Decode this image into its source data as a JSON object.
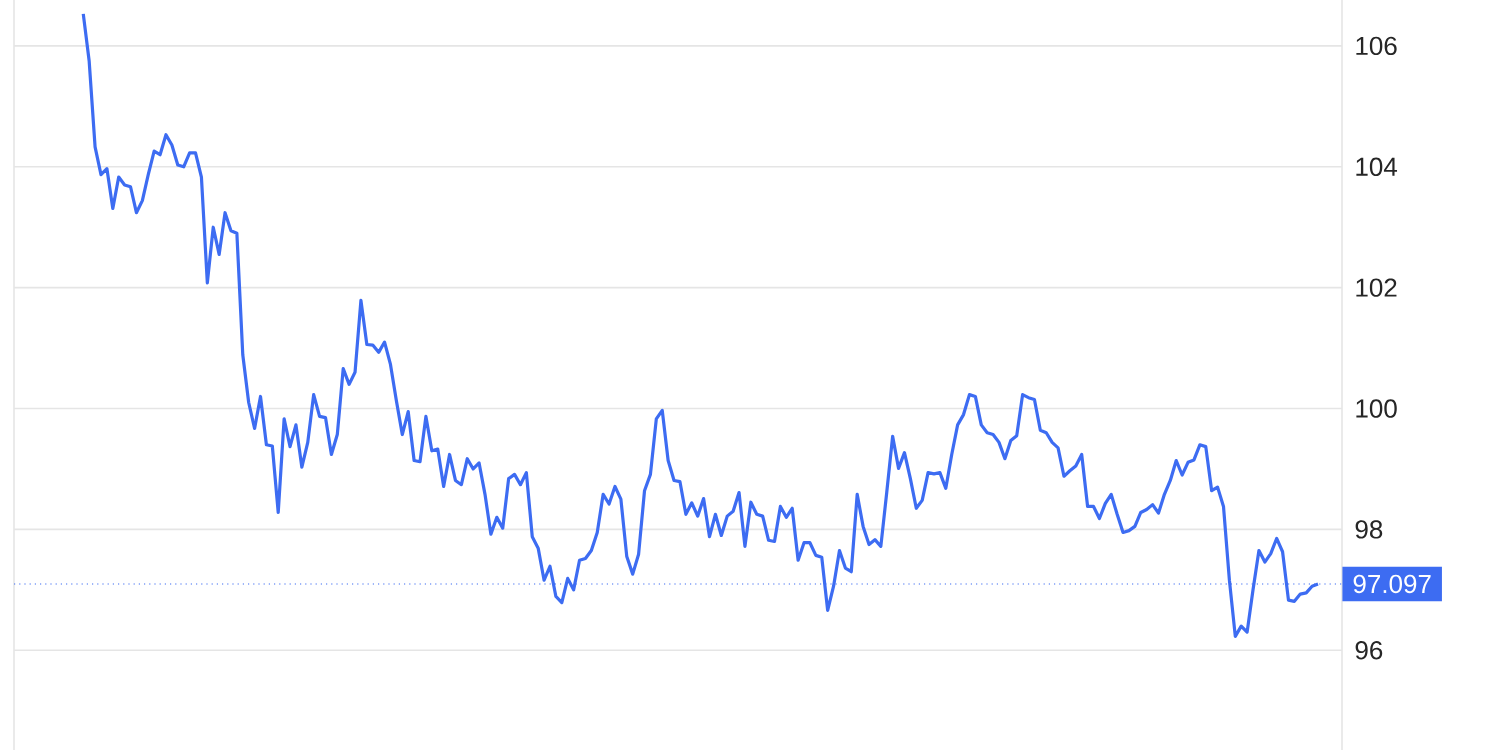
{
  "chart_data": {
    "type": "line",
    "color": "#3d6cf2",
    "categories": [
      null,
      null,
      null,
      null,
      null,
      null,
      null,
      null,
      null,
      null,
      null,
      null,
      null,
      null,
      null,
      null,
      null,
      null,
      null,
      null,
      null,
      null,
      null,
      null,
      null,
      null,
      null,
      null,
      null,
      null,
      null,
      null,
      null,
      null,
      null,
      null,
      null,
      null,
      null,
      null,
      null,
      null,
      null,
      null,
      null,
      null,
      null,
      null,
      null,
      null,
      null,
      null,
      null,
      null,
      null,
      null,
      null,
      null,
      null,
      null,
      null,
      null,
      null,
      null,
      null,
      null,
      null,
      null,
      null,
      null,
      null,
      null,
      null,
      null,
      null,
      null,
      null,
      null,
      null,
      null,
      null,
      null,
      null,
      null,
      null,
      null,
      null,
      null,
      null,
      null,
      null,
      null,
      null,
      null,
      null,
      null,
      null,
      null,
      null,
      null,
      null,
      null,
      null,
      null,
      null,
      null,
      null,
      null,
      null,
      null,
      null,
      null,
      null,
      null,
      null,
      null,
      null,
      null,
      null,
      null,
      null,
      null,
      null,
      null,
      null,
      null,
      null,
      null,
      null,
      null,
      null,
      null,
      null,
      null,
      null,
      null,
      null,
      null,
      null,
      null,
      null,
      null,
      null,
      null,
      null,
      null,
      null,
      null,
      null,
      null,
      null,
      null,
      null,
      null,
      null,
      null,
      null,
      null,
      null,
      null,
      null,
      null,
      null,
      null,
      null,
      null,
      null,
      null,
      null,
      null,
      null,
      null,
      null,
      null,
      null,
      null,
      null,
      null,
      null,
      null,
      null,
      null,
      null,
      null,
      null,
      null,
      null,
      null,
      null,
      null,
      null,
      null,
      null,
      null,
      null,
      null,
      null,
      null,
      null,
      null,
      null,
      null,
      null,
      null,
      null,
      null,
      null,
      null,
      null,
      null,
      null,
      null,
      null,
      null,
      null,
      null,
      null,
      null
    ],
    "values": [
      null,
      null,
      null,
      null,
      null,
      null,
      null,
      null,
      106.53,
      105.75,
      104.33,
      103.87,
      103.97,
      103.31,
      103.83,
      103.7,
      103.67,
      103.24,
      103.44,
      103.87,
      104.26,
      104.2,
      104.53,
      104.36,
      104.03,
      104.0,
      104.23,
      104.23,
      103.83,
      102.08,
      103.0,
      102.55,
      103.24,
      102.94,
      102.9,
      100.89,
      100.1,
      99.67,
      100.2,
      99.4,
      99.38,
      98.28,
      99.83,
      99.37,
      99.73,
      99.03,
      99.44,
      100.23,
      99.87,
      99.85,
      99.24,
      99.57,
      100.66,
      100.4,
      100.6,
      101.79,
      101.06,
      101.05,
      100.93,
      101.1,
      100.73,
      100.13,
      99.57,
      99.95,
      99.14,
      99.12,
      99.87,
      99.3,
      99.33,
      98.71,
      99.24,
      98.81,
      98.74,
      99.17,
      99.0,
      99.1,
      98.58,
      97.92,
      98.2,
      98.02,
      98.84,
      98.91,
      98.74,
      98.94,
      97.88,
      97.69,
      97.16,
      97.39,
      96.89,
      96.79,
      97.19,
      97.0,
      97.49,
      97.52,
      97.65,
      97.95,
      98.58,
      98.42,
      98.71,
      98.5,
      97.55,
      97.26,
      97.59,
      98.64,
      98.91,
      99.83,
      99.97,
      99.14,
      98.81,
      98.79,
      98.25,
      98.44,
      98.22,
      98.51,
      97.88,
      98.25,
      97.9,
      98.22,
      98.3,
      98.61,
      97.72,
      98.45,
      98.25,
      98.22,
      97.82,
      97.8,
      98.38,
      98.2,
      98.35,
      97.49,
      97.78,
      97.78,
      97.57,
      97.54,
      96.66,
      97.06,
      97.65,
      97.36,
      97.3,
      98.58,
      98.05,
      97.75,
      97.83,
      97.72,
      98.61,
      99.54,
      99.01,
      99.27,
      98.84,
      98.35,
      98.48,
      98.94,
      98.92,
      98.94,
      98.68,
      99.24,
      99.73,
      99.9,
      100.23,
      100.2,
      99.73,
      99.6,
      99.57,
      99.44,
      99.17,
      99.47,
      99.55,
      100.23,
      100.18,
      100.15,
      99.64,
      99.6,
      99.44,
      99.35,
      98.88,
      98.97,
      99.05,
      99.24,
      98.38,
      98.38,
      98.18,
      98.43,
      98.58,
      98.25,
      97.95,
      97.98,
      98.05,
      98.28,
      98.33,
      98.41,
      98.27,
      98.58,
      98.81,
      99.14,
      98.9,
      99.11,
      99.15,
      99.4,
      99.37,
      98.64,
      98.7,
      98.38,
      97.16,
      96.23,
      96.4,
      96.3,
      97.0,
      97.65,
      97.46,
      97.6,
      97.85,
      97.63,
      96.83,
      96.81,
      96.93,
      96.95,
      97.06,
      97.097
    ],
    "ylim": [
      94.35,
      106.76
    ],
    "yticks": [
      96,
      98,
      100,
      102,
      104,
      106
    ],
    "tick_labels": "y",
    "grid": "y",
    "marker": "none",
    "line_style": "solid",
    "ref_lines": [
      {
        "axis": "y",
        "value": 97.097,
        "label": "97.097",
        "color": "#3d6cf2",
        "line_style": "dotted"
      }
    ]
  }
}
